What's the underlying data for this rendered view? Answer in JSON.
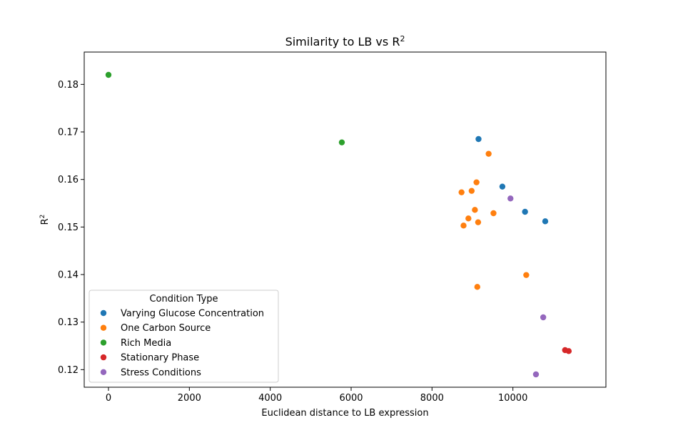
{
  "chart_data": {
    "type": "scatter",
    "title": "Similarity to LB vs R",
    "title_sup": "2",
    "xlabel": "Euclidean distance to LB expression",
    "ylabel": "R",
    "ylabel_sup": "2",
    "xlim": [
      -600,
      12300
    ],
    "ylim": [
      0.1163,
      0.1868
    ],
    "xticks": [
      0,
      2000,
      4000,
      6000,
      8000,
      10000
    ],
    "yticks": [
      0.12,
      0.13,
      0.14,
      0.15,
      0.16,
      0.17,
      0.18
    ],
    "grid": false,
    "legend": {
      "title": "Condition Type",
      "placement": "lower-left"
    },
    "series": [
      {
        "name": "Varying Glucose Concentration",
        "color": "#1f77b4",
        "points": [
          [
            9150,
            0.1685
          ],
          [
            9740,
            0.1585
          ],
          [
            10300,
            0.1532
          ],
          [
            10800,
            0.1512
          ]
        ]
      },
      {
        "name": "One Carbon Source",
        "color": "#ff7f0e",
        "points": [
          [
            9400,
            0.1654
          ],
          [
            9100,
            0.1594
          ],
          [
            8730,
            0.1573
          ],
          [
            8980,
            0.1576
          ],
          [
            9060,
            0.1536
          ],
          [
            9520,
            0.1529
          ],
          [
            8900,
            0.1518
          ],
          [
            9140,
            0.151
          ],
          [
            8780,
            0.1503
          ],
          [
            10330,
            0.1399
          ],
          [
            9120,
            0.1374
          ]
        ]
      },
      {
        "name": "Rich Media",
        "color": "#2ca02c",
        "points": [
          [
            0,
            0.182
          ],
          [
            5770,
            0.1678
          ]
        ]
      },
      {
        "name": "Stationary Phase",
        "color": "#d62728",
        "points": [
          [
            11290,
            0.1241
          ],
          [
            11380,
            0.1239
          ]
        ]
      },
      {
        "name": "Stress Conditions",
        "color": "#9467bd",
        "points": [
          [
            9940,
            0.156
          ],
          [
            10750,
            0.131
          ],
          [
            10570,
            0.119
          ]
        ]
      }
    ]
  }
}
